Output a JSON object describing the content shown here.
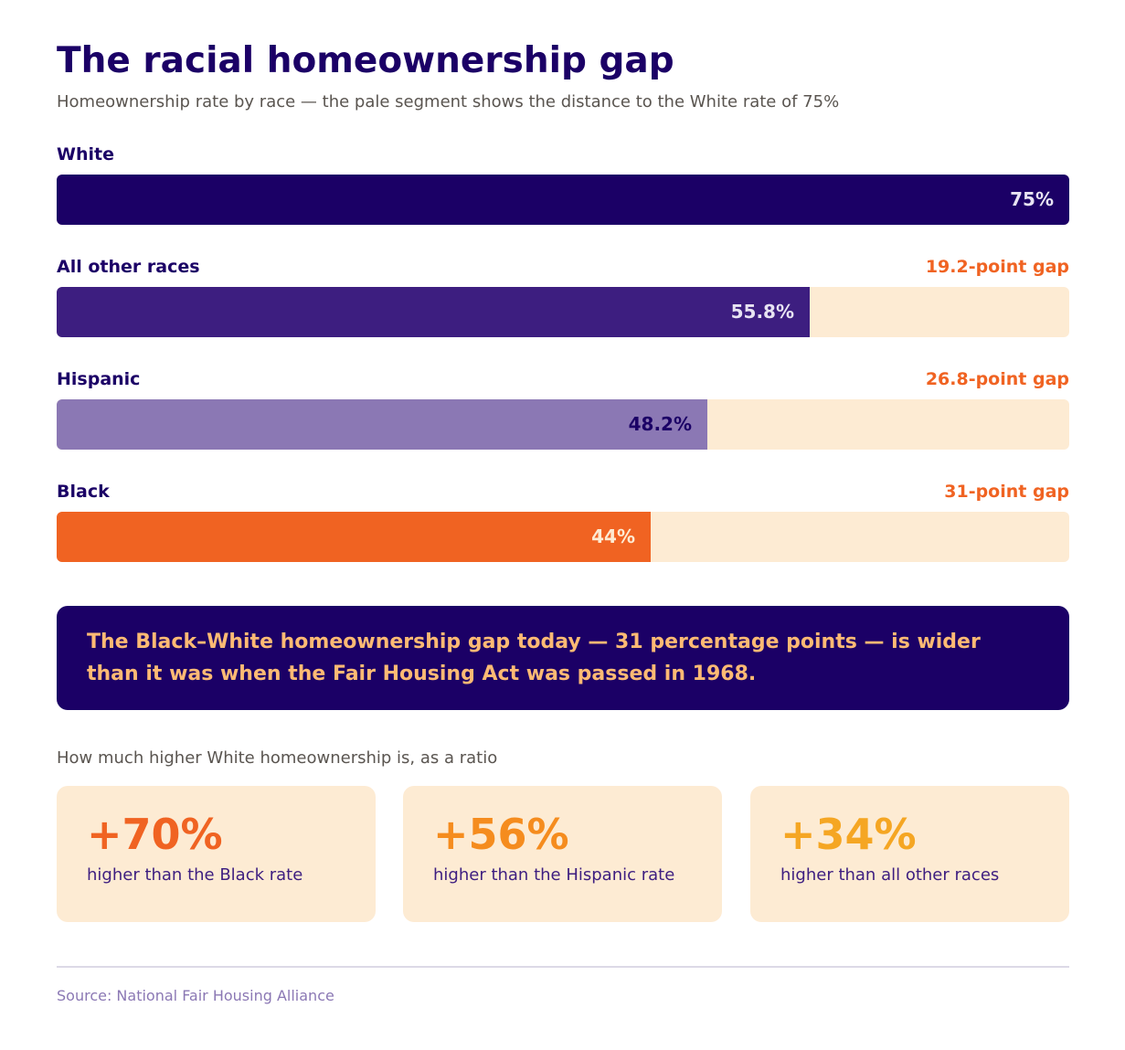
{
  "title": "The racial homeownership gap",
  "subtitle": "Homeownership rate by race — the pale segment shows the distance to the White rate of 75%",
  "chart_data": {
    "type": "bar",
    "orientation": "horizontal",
    "reference": 75,
    "xlim": [
      0,
      75
    ],
    "categories": [
      "White",
      "All other races",
      "Hispanic",
      "Black"
    ],
    "values": [
      75,
      55.8,
      48.2,
      44
    ],
    "value_labels": [
      "75%",
      "55.8%",
      "48.2%",
      "44%"
    ],
    "gap_labels": [
      "",
      "19.2-point gap",
      "26.8-point gap",
      "31-point gap"
    ],
    "colors": [
      "#1b0066",
      "#3d1e80",
      "#8b78b4",
      "#f06322"
    ],
    "value_label_colors": [
      "#e7e3f2",
      "#e7e3f2",
      "#1b0066",
      "#fdebd3"
    ]
  },
  "callout": {
    "text": "The Black–White homeownership gap today — 31 percentage points — is wider than it was when the Fair Housing Act was passed in 1968."
  },
  "ratios": {
    "heading": "How much higher White homeownership is, as a ratio",
    "items": [
      {
        "value": "+70%",
        "label": "higher than the Black rate",
        "color": "#f06322"
      },
      {
        "value": "+56%",
        "label": "higher than the Hispanic rate",
        "color": "#f58c1e"
      },
      {
        "value": "+34%",
        "label": "higher than all other races",
        "color": "#f5a623"
      }
    ]
  },
  "source": "Source: National Fair Housing Alliance"
}
